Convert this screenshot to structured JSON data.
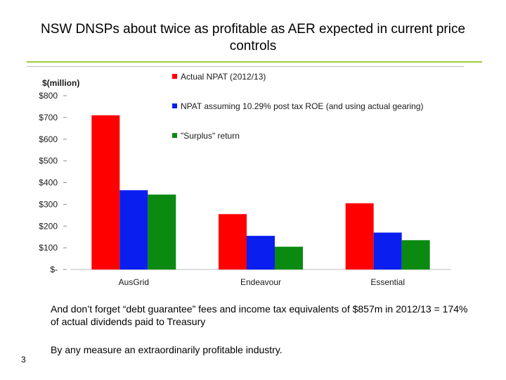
{
  "slide": {
    "title": "NSW DNSPs about twice as profitable as AER expected in current price controls",
    "notes": [
      "And don’t forget “debt guarantee” fees and income tax equivalents of $857m in 2012/13 = 174% of actual dividends paid to Treasury",
      "By any measure an extraordinarily profitable industry."
    ],
    "page_number": "3"
  },
  "chart_data": {
    "type": "bar",
    "ylabel": "$(million)",
    "ylim": [
      0,
      800
    ],
    "yticks": [
      {
        "value": 800,
        "label": "$800"
      },
      {
        "value": 700,
        "label": "$700"
      },
      {
        "value": 600,
        "label": "$600"
      },
      {
        "value": 500,
        "label": "$500"
      },
      {
        "value": 400,
        "label": "$400"
      },
      {
        "value": 300,
        "label": "$300"
      },
      {
        "value": 200,
        "label": "$200"
      },
      {
        "value": 100,
        "label": "$100"
      },
      {
        "value": 0,
        "label": "$-"
      }
    ],
    "categories": [
      "AusGrid",
      "Endeavour",
      "Essential"
    ],
    "series": [
      {
        "name": "Actual NPAT (2012/13)",
        "color": "#ff0000",
        "values": [
          710,
          255,
          305
        ]
      },
      {
        "name": "NPAT assuming 10.29%  post tax ROE  (and using actual gearing)",
        "color": "#0a1ef0",
        "values": [
          365,
          155,
          170
        ]
      },
      {
        "name": "\"Surplus\" return",
        "color": "#0a8a10",
        "values": [
          345,
          105,
          135
        ]
      }
    ],
    "legend_position": "top-center",
    "grid": false
  }
}
